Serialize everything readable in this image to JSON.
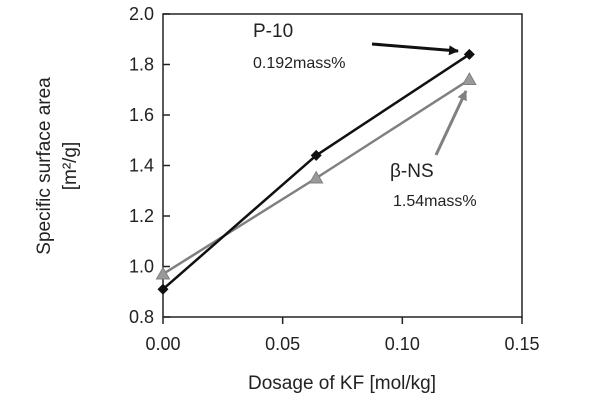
{
  "chart_data": {
    "type": "line",
    "xlabel": "Dosage of KF [mol/kg]",
    "ylabel_lines": [
      "Specific surface area",
      "[m²/g]"
    ],
    "xlim": [
      0.0,
      0.15
    ],
    "ylim": [
      0.8,
      2.0
    ],
    "x_ticks": [
      "0.00",
      "0.05",
      "0.10",
      "0.15"
    ],
    "y_ticks": [
      "0.8",
      "1.0",
      "1.2",
      "1.4",
      "1.6",
      "1.8",
      "2.0"
    ],
    "grid": false,
    "legend": "none",
    "series": [
      {
        "name": "P-10",
        "marker": "diamond",
        "color": "#111111",
        "x": [
          0.0,
          0.064,
          0.128
        ],
        "y": [
          0.91,
          1.44,
          1.84
        ]
      },
      {
        "name": "β-NS",
        "marker": "triangle",
        "color": "#808080",
        "x": [
          0.0,
          0.064,
          0.128
        ],
        "y": [
          0.97,
          1.35,
          1.74
        ]
      }
    ],
    "annotations": [
      {
        "label": "P-10",
        "value": "0.192mass%",
        "series": 0
      },
      {
        "label": "β-NS",
        "value": "1.54mass%",
        "series": 1
      }
    ]
  }
}
